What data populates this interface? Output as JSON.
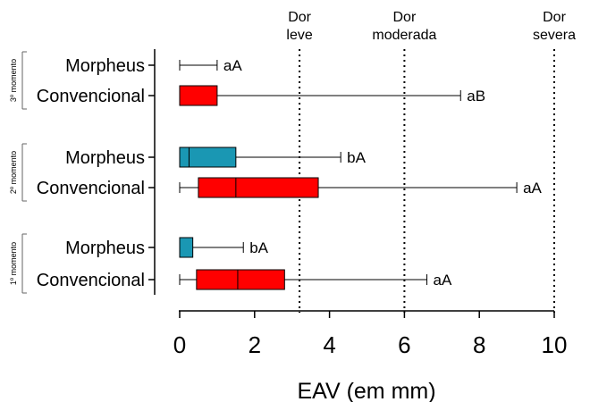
{
  "chart_data": {
    "type": "box",
    "xlabel": "EAV (em mm)",
    "xlim": [
      0,
      10
    ],
    "x_ticks": [
      "0",
      "2",
      "4",
      "6",
      "8",
      "10"
    ],
    "x_tick_values": [
      0,
      2,
      4,
      6,
      8,
      10
    ],
    "colors": {
      "Morpheus": "#1a97b3",
      "Convencional": "#ff0000"
    },
    "reference_lines": [
      {
        "label_lines": [
          "Dor",
          "leve"
        ],
        "x": 3.2
      },
      {
        "label_lines": [
          "Dor",
          "moderada"
        ],
        "x": 6.0
      },
      {
        "label_lines": [
          "Dor",
          "severa"
        ],
        "x": 10.0
      }
    ],
    "groups": [
      {
        "name": "3º momento",
        "rows": [
          {
            "category": "Morpheus",
            "min": 0,
            "q1": 0,
            "median": 0,
            "q3": 0,
            "max": 1.0,
            "annotation": "aA"
          },
          {
            "category": "Convencional",
            "min": 0,
            "q1": 0,
            "median": 0,
            "q3": 1.0,
            "max": 7.5,
            "annotation": "aB"
          }
        ]
      },
      {
        "name": "2º momento",
        "rows": [
          {
            "category": "Morpheus",
            "min": 0,
            "q1": 0,
            "median": 0.25,
            "q3": 1.5,
            "max": 4.3,
            "annotation": "bA"
          },
          {
            "category": "Convencional",
            "min": 0,
            "q1": 0.5,
            "median": 1.5,
            "q3": 3.7,
            "max": 9.0,
            "annotation": "aA"
          }
        ]
      },
      {
        "name": "1º momento",
        "rows": [
          {
            "category": "Morpheus",
            "min": 0,
            "q1": 0,
            "median": 0,
            "q3": 0.35,
            "max": 1.7,
            "annotation": "bA"
          },
          {
            "category": "Convencional",
            "min": 0,
            "q1": 0.45,
            "median": 1.55,
            "q3": 2.8,
            "max": 6.6,
            "annotation": "aA"
          }
        ]
      }
    ]
  }
}
